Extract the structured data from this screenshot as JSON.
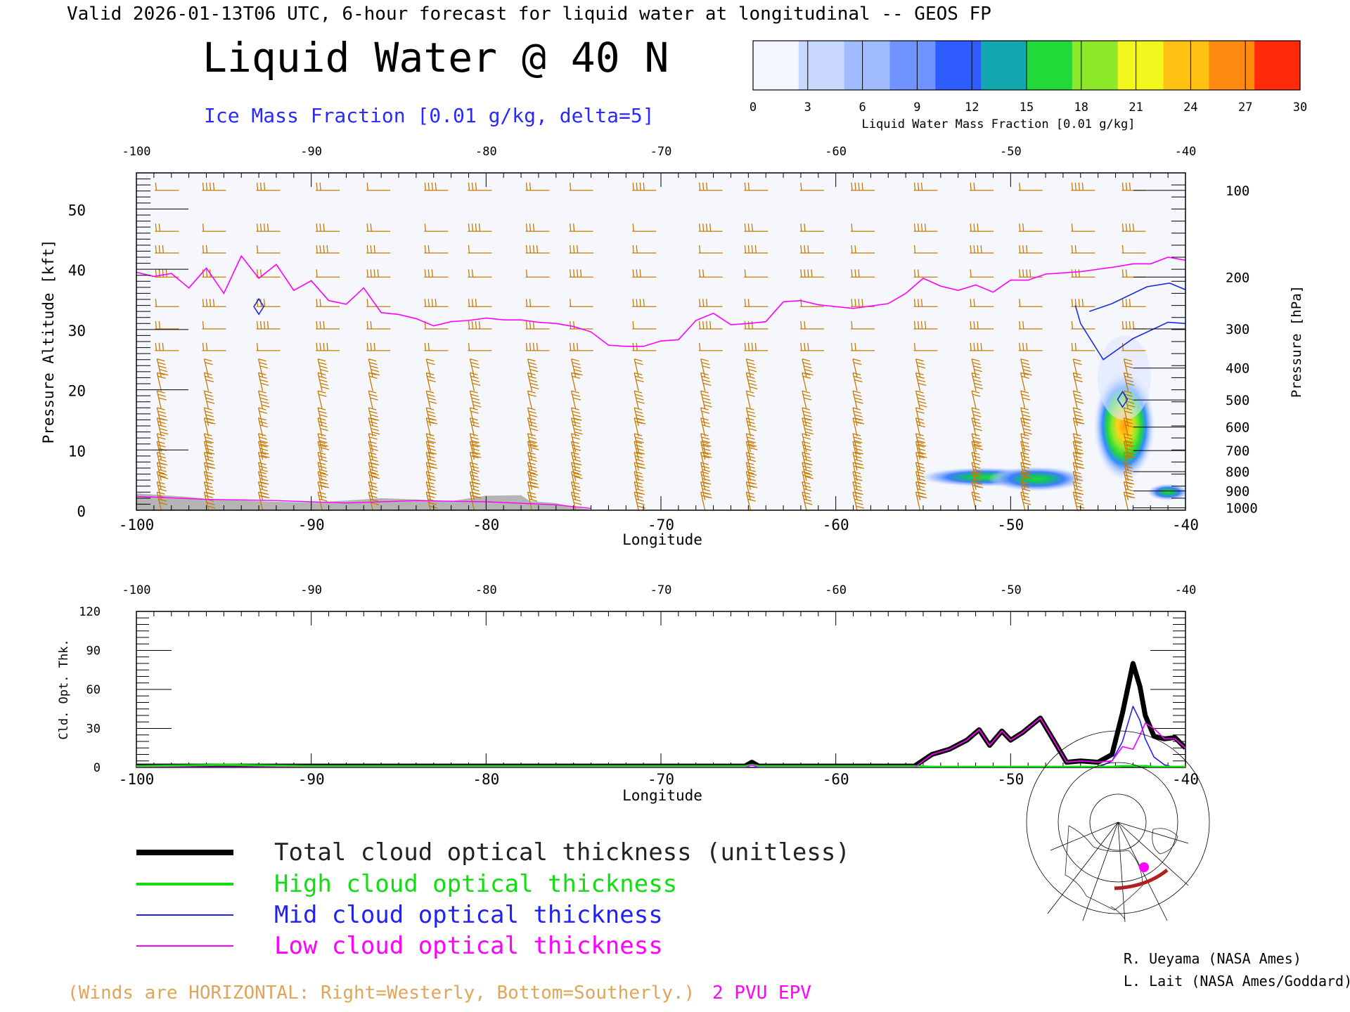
{
  "header": {
    "valid_line": "Valid 2026-01-13T06 UTC, 6-hour forecast for liquid water at longitudinal -- GEOS FP",
    "title": "Liquid Water @ 40 N",
    "subtitle": "Ice Mass Fraction [0.01 g/kg, delta=5]"
  },
  "colorbar": {
    "ticks": [
      "0",
      "3",
      "6",
      "9",
      "12",
      "15",
      "18",
      "21",
      "24",
      "27",
      "30"
    ],
    "label": "Liquid Water Mass Fraction [0.01 g/kg]",
    "colors": [
      "#f4f6ff",
      "#c8d8ff",
      "#a0bcff",
      "#6f93ff",
      "#2f5cff",
      "#13a8b0",
      "#22d93a",
      "#8ee82a",
      "#f2f61c",
      "#ffc212",
      "#ff8a10",
      "#ff2a08"
    ]
  },
  "notes": {
    "winds": "(Winds are HORIZONTAL: Right=Westerly, Bottom=Southerly.)",
    "epv": "2 PVU EPV"
  },
  "credits": [
    "R. Ueyama (NASA Ames)",
    "L. Lait (NASA Ames/Goddard)"
  ],
  "chart_data": [
    {
      "type": "heatmap",
      "name": "cross-section",
      "title": "Liquid Water @ 40 N",
      "xlabel": "Longitude",
      "ylabel": "Pressure Altitude [kft]",
      "ylabel_right": "Pressure [hPa]",
      "xlim": [
        -100,
        -40
      ],
      "ylim": [
        0,
        56
      ],
      "x_ticks": [
        "-100",
        "-90",
        "-80",
        "-70",
        "-60",
        "-50",
        "-40"
      ],
      "y_ticks": [
        "0",
        "10",
        "20",
        "30",
        "40",
        "50"
      ],
      "pressure_ticks": [
        {
          "label": "100",
          "kft": 53.1
        },
        {
          "label": "200",
          "kft": 38.7
        },
        {
          "label": "300",
          "kft": 30.1
        },
        {
          "label": "400",
          "kft": 23.6
        },
        {
          "label": "500",
          "kft": 18.3
        },
        {
          "label": "600",
          "kft": 13.8
        },
        {
          "label": "700",
          "kft": 9.9
        },
        {
          "label": "800",
          "kft": 6.4
        },
        {
          "label": "900",
          "kft": 3.2
        },
        {
          "label": "1000",
          "kft": 0.4
        }
      ],
      "epv_2pvu": {
        "color": "#ff00ff",
        "lon": [
          -100,
          -99,
          -98,
          -97,
          -96,
          -95,
          -94,
          -93,
          -92,
          -91,
          -90,
          -89,
          -88,
          -87,
          -86,
          -85,
          -84,
          -83,
          -82,
          -81,
          -80,
          -79,
          -78,
          -77,
          -76,
          -75,
          -74,
          -73,
          -72,
          -71,
          -70,
          -69,
          -68,
          -67,
          -66,
          -65,
          -64,
          -63,
          -62,
          -61,
          -60,
          -59,
          -58,
          -57,
          -56,
          -55,
          -54,
          -53,
          -52,
          -51,
          -50,
          -49,
          -48,
          -47,
          -46,
          -45,
          -44,
          -43,
          -42,
          -41,
          -40
        ],
        "kft": [
          39.5,
          38.8,
          39.3,
          36.9,
          40.2,
          36.0,
          42.2,
          38.5,
          40.8,
          36.5,
          38.1,
          34.8,
          34.2,
          36.9,
          32.8,
          32.5,
          31.8,
          30.6,
          31.3,
          31.5,
          31.9,
          31.6,
          31.6,
          31.2,
          31.0,
          30.5,
          29.6,
          27.4,
          27.2,
          27.2,
          28.1,
          28.3,
          31.5,
          32.7,
          30.8,
          31.0,
          31.3,
          34.6,
          34.8,
          34.1,
          33.8,
          33.5,
          33.9,
          34.3,
          36.0,
          38.5,
          37.2,
          36.5,
          37.4,
          36.2,
          38.2,
          38.2,
          39.2,
          39.4,
          39.6,
          40.0,
          40.4,
          40.9,
          40.9,
          42.0,
          41.5
        ]
      },
      "surface_terrain_kft": {
        "lon": [
          -100,
          -98.5,
          -97,
          -96,
          -94,
          -92,
          -90,
          -88,
          -86,
          -84,
          -82,
          -80,
          -78,
          -77.5,
          -76,
          -75,
          -74
        ],
        "kft": [
          2.8,
          2.5,
          2.2,
          1.9,
          1.6,
          1.4,
          1.3,
          1.6,
          2.0,
          1.8,
          1.5,
          2.4,
          2.5,
          1.5,
          1.2,
          0.5,
          0.1
        ]
      },
      "liquid_water_blobs": [
        {
          "lon": -51.5,
          "kft": 5.5,
          "max": 14
        },
        {
          "lon": -48.5,
          "kft": 5.2,
          "max": 17
        },
        {
          "lon": -43.5,
          "kft": 14.0,
          "max": 27
        },
        {
          "lon": -41.0,
          "kft": 3.0,
          "max": 17
        }
      ],
      "ice_contours": [
        {
          "label": "0",
          "lon": [
            -46.3,
            -46.0,
            -44.7,
            -43.0,
            -41.0,
            -40.0
          ],
          "kft": [
            34.0,
            31.0,
            25.0,
            28.5,
            31.2,
            31.0
          ]
        },
        {
          "label": "5",
          "lon": [
            -45.5,
            -44.2,
            -42.2,
            -40.9,
            -40.0
          ],
          "kft": [
            33.0,
            34.3,
            37.1,
            37.7,
            36.6
          ]
        }
      ],
      "winds": {
        "color": "#c87a00",
        "columns_lon": [
          -98.7,
          -96.0,
          -92.9,
          -89.5,
          -86.6,
          -83.3,
          -80.8,
          -77.5,
          -75.0,
          -71.4,
          -67.6,
          -65.0,
          -61.8,
          -58.9,
          -55.3,
          -52.1,
          -49.3,
          -46.3,
          -43.4
        ],
        "levels_kft": [
          53.1,
          46.3,
          42.7,
          38.7,
          33.8,
          30.1,
          26.5,
          23.6,
          21.3,
          18.3,
          15.5,
          13.8,
          11.2,
          9.9,
          8.1,
          6.4,
          4.9,
          3.2,
          1.5
        ]
      }
    },
    {
      "type": "line",
      "name": "cloud-optical-thickness",
      "xlabel": "Longitude",
      "ylabel": "Cld. Opt. Thk.",
      "xlim": [
        -100,
        -40
      ],
      "ylim": [
        0,
        120
      ],
      "x_ticks": [
        "-100",
        "-90",
        "-80",
        "-70",
        "-60",
        "-50",
        "-40"
      ],
      "y_ticks": [
        "0",
        "30",
        "60",
        "90",
        "120"
      ],
      "x": [
        -100,
        -95,
        -90,
        -85,
        -80,
        -75,
        -70,
        -65.2,
        -64.8,
        -64.4,
        -60,
        -55.5,
        -54.5,
        -53.5,
        -52.5,
        -51.8,
        -51.2,
        -50.5,
        -50.0,
        -49.3,
        -48.3,
        -47.5,
        -46.8,
        -46.0,
        -45.0,
        -44.2,
        -43.6,
        -43.0,
        -42.6,
        -42.3,
        -41.8,
        -41.2,
        -40.6,
        -40.0
      ],
      "series": [
        {
          "name": "Total cloud optical thickness (unitless)",
          "color": "#000000",
          "values": [
            1,
            1,
            1,
            1,
            1,
            1,
            1,
            1,
            4,
            1,
            1,
            1,
            10,
            14,
            21,
            29,
            17,
            28,
            21,
            27,
            38,
            20,
            4,
            5,
            4,
            10,
            42,
            80,
            62,
            40,
            24,
            22,
            23,
            15
          ]
        },
        {
          "name": "High cloud optical thickness",
          "color": "#11dd11",
          "values": [
            1,
            2,
            1,
            1,
            1,
            1,
            1,
            1,
            2,
            1,
            1,
            1,
            0.5,
            0.5,
            0.5,
            0.5,
            0.5,
            0.5,
            0.5,
            0.5,
            0.5,
            0.5,
            0.5,
            0.5,
            0.5,
            0.5,
            1,
            1,
            1,
            1,
            0.5,
            0.5,
            0.5,
            0.5
          ]
        },
        {
          "name": "Mid cloud optical thickness",
          "color": "#2222ee",
          "values": [
            0,
            0,
            0,
            0,
            0,
            0,
            0,
            0,
            0,
            0,
            0,
            0,
            0,
            0,
            0,
            0,
            0,
            0,
            0,
            0,
            0,
            0,
            0,
            0,
            0,
            5,
            20,
            47,
            36,
            22,
            8,
            2,
            0,
            0
          ]
        },
        {
          "name": "Low cloud optical thickness",
          "color": "#ff00ff",
          "values": [
            0,
            0,
            0,
            0,
            0,
            0,
            0,
            0,
            2,
            0,
            0,
            0,
            10,
            14,
            21,
            29,
            17,
            28,
            21,
            27,
            38,
            20,
            4,
            5,
            4,
            5,
            16,
            14,
            25,
            34,
            30,
            22,
            22,
            15
          ]
        }
      ]
    }
  ]
}
